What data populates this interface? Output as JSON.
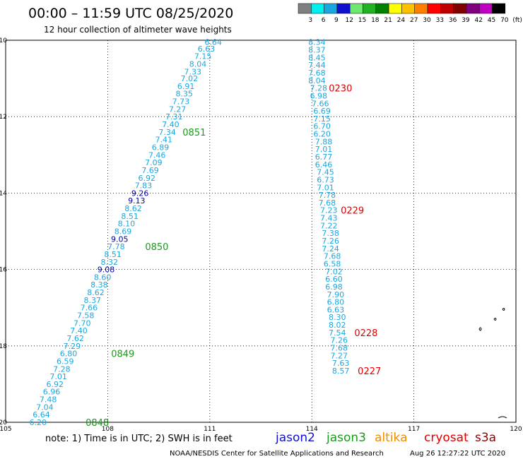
{
  "header": {
    "title": "00:00 – 11:59 UTC 08/25/2020",
    "subtitle": "12 hour collection of altimeter wave heights"
  },
  "footer": {
    "note": "note: 1) Time is in UTC; 2) SWH is in feet",
    "credit": "NOAA/NESDIS Center for Satellite Applications and Research",
    "timestamp": "Aug 26 12:27:22 UTC 2020"
  },
  "colors": {
    "jason2": "#1010d0",
    "jason3": "#1a9a1a",
    "altika": "#f08c00",
    "cryosat": "#e00000",
    "s3a": "#900000",
    "value": "#1aa7e0",
    "value_high": "#0000a0"
  },
  "chart_data": {
    "type": "scatter",
    "xlim": [
      105,
      120
    ],
    "ylim": [
      -20,
      -10
    ],
    "xticks": [
      "105",
      "108",
      "111",
      "114",
      "117",
      "120"
    ],
    "yticks": [
      "-10",
      "-12",
      "-14",
      "-16",
      "-18",
      "-20"
    ],
    "grid": true,
    "colorbar": {
      "labels": [
        "3",
        "6",
        "9",
        "12",
        "15",
        "18",
        "21",
        "24",
        "27",
        "30",
        "33",
        "36",
        "39",
        "42",
        "45",
        "70",
        "(ft)"
      ],
      "colors": [
        "#808080",
        "#00f0f0",
        "#1aa7e0",
        "#1010d0",
        "#6fe86f",
        "#22b322",
        "#008000",
        "#ffff00",
        "#ffc000",
        "#ff8000",
        "#ff0000",
        "#c00000",
        "#800000",
        "#800080",
        "#c000c0",
        "#000000"
      ]
    },
    "legend": [
      "jason2",
      "jason3",
      "altika",
      "cryosat",
      "s3a"
    ],
    "tracks": [
      {
        "satellite": "jason3",
        "points": [
          {
            "lon": 111.1,
            "lat": -10.05,
            "v": "6.64"
          },
          {
            "lon": 110.9,
            "lat": -10.22,
            "v": "6.63"
          },
          {
            "lon": 110.8,
            "lat": -10.42,
            "v": "7.15"
          },
          {
            "lon": 110.65,
            "lat": -10.62,
            "v": "8.04"
          },
          {
            "lon": 110.5,
            "lat": -10.82,
            "v": "7.33"
          },
          {
            "lon": 110.4,
            "lat": -11.0,
            "v": "7.02"
          },
          {
            "lon": 110.3,
            "lat": -11.2,
            "v": "6.91"
          },
          {
            "lon": 110.25,
            "lat": -11.4,
            "v": "8.35"
          },
          {
            "lon": 110.15,
            "lat": -11.6,
            "v": "7.73"
          },
          {
            "lon": 110.05,
            "lat": -11.8,
            "v": "7.27"
          },
          {
            "lon": 109.95,
            "lat": -12.0,
            "v": "7.31"
          },
          {
            "lon": 109.85,
            "lat": -12.2,
            "v": "7.40"
          },
          {
            "lon": 109.75,
            "lat": -12.4,
            "v": "7.34"
          },
          {
            "lon": 109.65,
            "lat": -12.6,
            "v": "7.41"
          },
          {
            "lon": 109.55,
            "lat": -12.8,
            "v": "6.89"
          },
          {
            "lon": 109.45,
            "lat": -13.0,
            "v": "7.46"
          },
          {
            "lon": 109.35,
            "lat": -13.2,
            "v": "7.09"
          },
          {
            "lon": 109.25,
            "lat": -13.4,
            "v": "7.69"
          },
          {
            "lon": 109.15,
            "lat": -13.6,
            "v": "6.92"
          },
          {
            "lon": 109.05,
            "lat": -13.8,
            "v": "7.83"
          },
          {
            "lon": 108.95,
            "lat": -14.0,
            "v": "9.26"
          },
          {
            "lon": 108.85,
            "lat": -14.2,
            "v": "9.13"
          },
          {
            "lon": 108.75,
            "lat": -14.4,
            "v": "8.62"
          },
          {
            "lon": 108.65,
            "lat": -14.6,
            "v": "8.51"
          },
          {
            "lon": 108.55,
            "lat": -14.8,
            "v": "8.10"
          },
          {
            "lon": 108.45,
            "lat": -15.0,
            "v": "8.69"
          },
          {
            "lon": 108.35,
            "lat": -15.2,
            "v": "9.05"
          },
          {
            "lon": 108.25,
            "lat": -15.4,
            "v": "7.78"
          },
          {
            "lon": 108.15,
            "lat": -15.6,
            "v": "8.51"
          },
          {
            "lon": 108.05,
            "lat": -15.8,
            "v": "8.32"
          },
          {
            "lon": 107.95,
            "lat": -16.0,
            "v": "9.08"
          },
          {
            "lon": 107.85,
            "lat": -16.2,
            "v": "8.60"
          },
          {
            "lon": 107.75,
            "lat": -16.4,
            "v": "8.38"
          },
          {
            "lon": 107.65,
            "lat": -16.6,
            "v": "8.62"
          },
          {
            "lon": 107.55,
            "lat": -16.8,
            "v": "8.37"
          },
          {
            "lon": 107.45,
            "lat": -17.0,
            "v": "7.66"
          },
          {
            "lon": 107.35,
            "lat": -17.2,
            "v": "7.58"
          },
          {
            "lon": 107.25,
            "lat": -17.4,
            "v": "7.70"
          },
          {
            "lon": 107.15,
            "lat": -17.6,
            "v": "7.40"
          },
          {
            "lon": 107.05,
            "lat": -17.8,
            "v": "7.62"
          },
          {
            "lon": 106.95,
            "lat": -18.0,
            "v": "7.29"
          },
          {
            "lon": 106.85,
            "lat": -18.2,
            "v": "6.80"
          },
          {
            "lon": 106.75,
            "lat": -18.4,
            "v": "6.59"
          },
          {
            "lon": 106.65,
            "lat": -18.6,
            "v": "7.28"
          },
          {
            "lon": 106.55,
            "lat": -18.8,
            "v": "7.01"
          },
          {
            "lon": 106.45,
            "lat": -19.0,
            "v": "6.92"
          },
          {
            "lon": 106.35,
            "lat": -19.2,
            "v": "6.96"
          },
          {
            "lon": 106.25,
            "lat": -19.4,
            "v": "7.48"
          },
          {
            "lon": 106.15,
            "lat": -19.6,
            "v": "7.04"
          },
          {
            "lon": 106.05,
            "lat": -19.8,
            "v": "6.64"
          },
          {
            "lon": 105.95,
            "lat": -20.0,
            "v": "6.20"
          }
        ],
        "time_labels": [
          {
            "lon": 110.2,
            "lat": -12.4,
            "t": "0851"
          },
          {
            "lon": 109.1,
            "lat": -15.4,
            "t": "0850"
          },
          {
            "lon": 108.1,
            "lat": -18.2,
            "t": "0849"
          },
          {
            "lon": 107.35,
            "lat": -20.0,
            "t": "0848"
          }
        ]
      },
      {
        "satellite": "cryosat",
        "points": [
          {
            "lon": 114.15,
            "lat": -10.05,
            "v": "8.34"
          },
          {
            "lon": 114.15,
            "lat": -10.25,
            "v": "8.37"
          },
          {
            "lon": 114.15,
            "lat": -10.45,
            "v": "8.45"
          },
          {
            "lon": 114.15,
            "lat": -10.65,
            "v": "7.44"
          },
          {
            "lon": 114.15,
            "lat": -10.85,
            "v": "7.68"
          },
          {
            "lon": 114.15,
            "lat": -11.05,
            "v": "8.04"
          },
          {
            "lon": 114.2,
            "lat": -11.25,
            "v": "7.28"
          },
          {
            "lon": 114.2,
            "lat": -11.45,
            "v": "6.98"
          },
          {
            "lon": 114.25,
            "lat": -11.65,
            "v": "7.66"
          },
          {
            "lon": 114.3,
            "lat": -11.85,
            "v": "6.69"
          },
          {
            "lon": 114.3,
            "lat": -12.05,
            "v": "7.15"
          },
          {
            "lon": 114.3,
            "lat": -12.25,
            "v": "6.70"
          },
          {
            "lon": 114.3,
            "lat": -12.45,
            "v": "6.20"
          },
          {
            "lon": 114.35,
            "lat": -12.65,
            "v": "7.88"
          },
          {
            "lon": 114.35,
            "lat": -12.85,
            "v": "7.01"
          },
          {
            "lon": 114.35,
            "lat": -13.05,
            "v": "6.77"
          },
          {
            "lon": 114.35,
            "lat": -13.25,
            "v": "6.46"
          },
          {
            "lon": 114.4,
            "lat": -13.45,
            "v": "7.45"
          },
          {
            "lon": 114.4,
            "lat": -13.65,
            "v": "6.73"
          },
          {
            "lon": 114.4,
            "lat": -13.85,
            "v": "7.01"
          },
          {
            "lon": 114.45,
            "lat": -14.05,
            "v": "7.78"
          },
          {
            "lon": 114.45,
            "lat": -14.25,
            "v": "7.68"
          },
          {
            "lon": 114.5,
            "lat": -14.45,
            "v": "7.23"
          },
          {
            "lon": 114.5,
            "lat": -14.65,
            "v": "7.43"
          },
          {
            "lon": 114.5,
            "lat": -14.85,
            "v": "7.22"
          },
          {
            "lon": 114.55,
            "lat": -15.05,
            "v": "7.38"
          },
          {
            "lon": 114.55,
            "lat": -15.25,
            "v": "7.26"
          },
          {
            "lon": 114.55,
            "lat": -15.45,
            "v": "7.24"
          },
          {
            "lon": 114.6,
            "lat": -15.65,
            "v": "7.68"
          },
          {
            "lon": 114.6,
            "lat": -15.85,
            "v": "6.58"
          },
          {
            "lon": 114.65,
            "lat": -16.05,
            "v": "7.02"
          },
          {
            "lon": 114.65,
            "lat": -16.25,
            "v": "6.60"
          },
          {
            "lon": 114.65,
            "lat": -16.45,
            "v": "6.98"
          },
          {
            "lon": 114.7,
            "lat": -16.65,
            "v": "7.90"
          },
          {
            "lon": 114.7,
            "lat": -16.85,
            "v": "6.80"
          },
          {
            "lon": 114.7,
            "lat": -17.05,
            "v": "6.63"
          },
          {
            "lon": 114.75,
            "lat": -17.25,
            "v": "8.30"
          },
          {
            "lon": 114.75,
            "lat": -17.45,
            "v": "8.02"
          },
          {
            "lon": 114.75,
            "lat": -17.65,
            "v": "7.54"
          },
          {
            "lon": 114.8,
            "lat": -17.85,
            "v": "7.26"
          },
          {
            "lon": 114.8,
            "lat": -18.05,
            "v": "7.68"
          },
          {
            "lon": 114.8,
            "lat": -18.25,
            "v": "7.27"
          },
          {
            "lon": 114.85,
            "lat": -18.45,
            "v": "7.63"
          },
          {
            "lon": 114.85,
            "lat": -18.65,
            "v": "8.57"
          }
        ],
        "time_labels": [
          {
            "lon": 114.5,
            "lat": -11.25,
            "t": "0230"
          },
          {
            "lon": 114.85,
            "lat": -14.45,
            "t": "0229"
          },
          {
            "lon": 115.25,
            "lat": -17.65,
            "t": "0228"
          },
          {
            "lon": 115.35,
            "lat": -18.65,
            "t": "0227"
          }
        ]
      }
    ]
  }
}
